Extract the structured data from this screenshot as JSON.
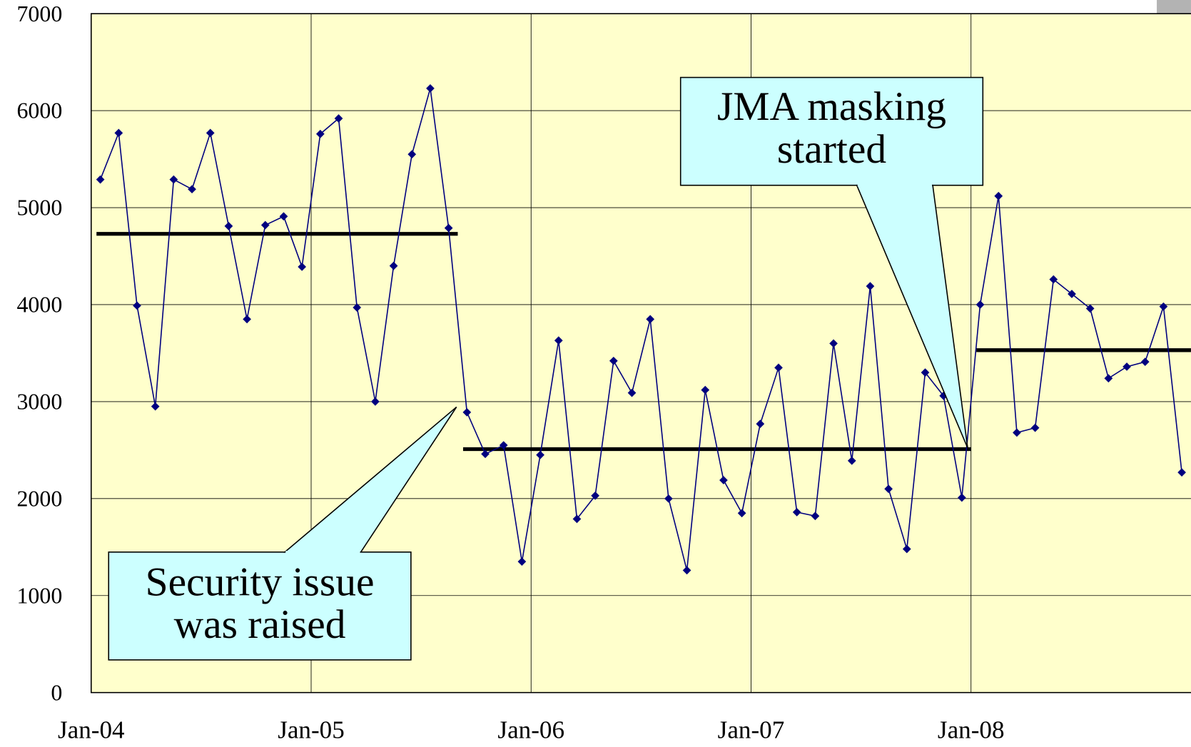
{
  "chart_data": {
    "type": "line",
    "x": [
      "2004-01",
      "2004-02",
      "2004-03",
      "2004-04",
      "2004-05",
      "2004-06",
      "2004-07",
      "2004-08",
      "2004-09",
      "2004-10",
      "2004-11",
      "2004-12",
      "2005-01",
      "2005-02",
      "2005-03",
      "2005-04",
      "2005-05",
      "2005-06",
      "2005-07",
      "2005-08",
      "2005-09",
      "2005-10",
      "2005-11",
      "2005-12",
      "2006-01",
      "2006-02",
      "2006-03",
      "2006-04",
      "2006-05",
      "2006-06",
      "2006-07",
      "2006-08",
      "2006-09",
      "2006-10",
      "2006-11",
      "2006-12",
      "2007-01",
      "2007-02",
      "2007-03",
      "2007-04",
      "2007-05",
      "2007-06",
      "2007-07",
      "2007-08",
      "2007-09",
      "2007-10",
      "2007-11",
      "2007-12",
      "2008-01",
      "2008-02",
      "2008-03",
      "2008-04",
      "2008-05",
      "2008-06",
      "2008-07",
      "2008-08",
      "2008-09",
      "2008-10",
      "2008-11",
      "2008-12"
    ],
    "series": [
      {
        "color": "#00007f",
        "values": [
          5290,
          5770,
          3990,
          2950,
          5290,
          5190,
          5770,
          4810,
          3850,
          4820,
          4910,
          4390,
          5760,
          5920,
          3970,
          3000,
          4400,
          5550,
          6230,
          4790,
          2890,
          2460,
          2550,
          1350,
          2450,
          3630,
          1790,
          2030,
          3420,
          3090,
          3850,
          2000,
          1260,
          3120,
          2190,
          1850,
          2770,
          3350,
          1860,
          1820,
          3600,
          2390,
          4190,
          2100,
          1480,
          3300,
          3060,
          2010,
          4000,
          5120,
          2680,
          2730,
          4260,
          4110,
          3960,
          3240,
          3360,
          3410,
          3980,
          2270
        ]
      }
    ],
    "reference_lines": [
      {
        "value": 4730,
        "start": "2004-01",
        "end": "2005-08"
      },
      {
        "value": 2510,
        "start": "2005-09",
        "end": "2007-12"
      },
      {
        "value": 3530,
        "start": "2008-01",
        "end": "2008-12"
      }
    ],
    "xlim": [
      "2004-01",
      "2009-01"
    ],
    "xticks": [
      {
        "value": "2004-01",
        "label": "Jan-04"
      },
      {
        "value": "2005-01",
        "label": "Jan-05"
      },
      {
        "value": "2006-01",
        "label": "Jan-06"
      },
      {
        "value": "2007-01",
        "label": "Jan-07"
      },
      {
        "value": "2008-01",
        "label": "Jan-08"
      }
    ],
    "ylim": [
      0,
      7000
    ],
    "yticks": [
      0,
      1000,
      2000,
      3000,
      4000,
      5000,
      6000,
      7000
    ],
    "grid": true,
    "background": "#ffffcc",
    "annotations": [
      {
        "lines": [
          "Security issue",
          "was raised"
        ]
      },
      {
        "lines": [
          "JMA masking",
          "started"
        ]
      }
    ]
  }
}
